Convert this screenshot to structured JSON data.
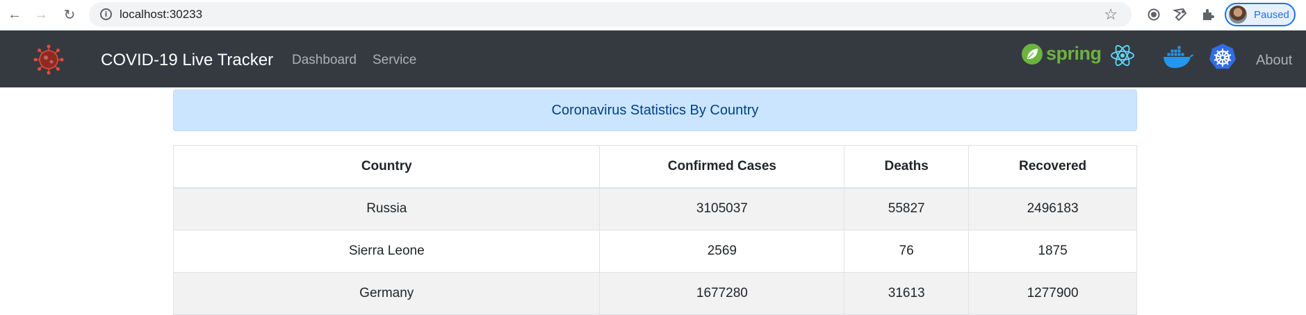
{
  "browser": {
    "url": "localhost:30233",
    "profile_status": "Paused"
  },
  "navbar": {
    "title": "COVID-19 Live Tracker",
    "links": [
      "Dashboard",
      "Service"
    ],
    "tech_logos": [
      "spring-icon",
      "react-icon",
      "docker-icon",
      "kubernetes-icon"
    ],
    "spring_label": "spring",
    "about_label": "About",
    "background": "#343a40"
  },
  "alert": {
    "text": "Coronavirus Statistics By Country",
    "background": "#cce5ff",
    "color": "#004085"
  },
  "table": {
    "headers": [
      "Country",
      "Confirmed Cases",
      "Deaths",
      "Recovered"
    ],
    "rows": [
      [
        "Russia",
        "3105037",
        "55827",
        "2496183"
      ],
      [
        "Sierra Leone",
        "2569",
        "76",
        "1875"
      ],
      [
        "Germany",
        "1677280",
        "31613",
        "1277900"
      ]
    ]
  }
}
